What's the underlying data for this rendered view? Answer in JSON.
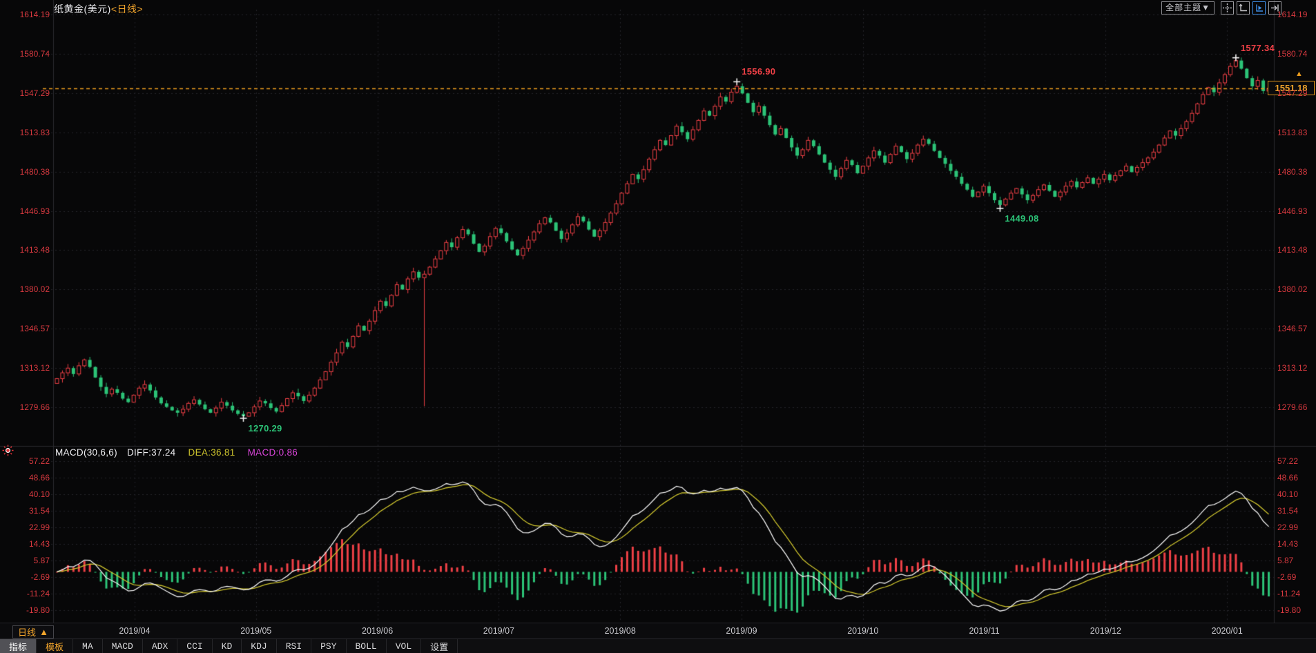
{
  "window": {
    "title_instrument": "纸黄金(美元)",
    "title_period": "<日线>"
  },
  "topbar": {
    "theme_button": "全部主题",
    "theme_caret": "▼",
    "icons": [
      "move-tool-icon",
      "axis-scale-icon",
      "axis-play-icon",
      "snap-to-edge-icon"
    ],
    "active_icon": "axis-play-icon"
  },
  "macd_header": {
    "name": "MACD(30,6,6)",
    "diff": "DIFF:37.24",
    "dea": "DEA:36.81",
    "macd": "MACD:0.86"
  },
  "price_tag": {
    "value": "1551.18"
  },
  "bottom": {
    "period_label": "日线",
    "period_caret": "▲",
    "tabs": [
      {
        "label": "指标",
        "state": "selected"
      },
      {
        "label": "模板",
        "state": "accent"
      },
      {
        "label": "MA"
      },
      {
        "label": "MACD"
      },
      {
        "label": "ADX"
      },
      {
        "label": "CCI"
      },
      {
        "label": "KD"
      },
      {
        "label": "KDJ"
      },
      {
        "label": "RSI"
      },
      {
        "label": "PSY"
      },
      {
        "label": "BOLL"
      },
      {
        "label": "VOL"
      },
      {
        "label": "设置"
      }
    ]
  },
  "colors": {
    "up": "#ef4046",
    "down": "#2cc377",
    "axis_text": "#d7393f",
    "accent_orange": "#e89a1d",
    "diff_line": "#f2f2f2",
    "dea_line": "#cdc32d",
    "macd_value": "#da45da",
    "grid": "#232328",
    "month_text": "#cbcbd0"
  },
  "chart_data": {
    "type": "candlestick+macd",
    "title": "纸黄金(美元)",
    "period": "日线",
    "y_axis_labels": [
      "1614.19",
      "1580.74",
      "1547.29",
      "1513.83",
      "1480.38",
      "1446.93",
      "1413.48",
      "1380.02",
      "1346.57",
      "1313.12",
      "1279.66"
    ],
    "y_max": 1614.19,
    "y_min": 1279.66,
    "macd_axis_labels": [
      "57.22",
      "48.66",
      "40.10",
      "31.54",
      "22.99",
      "14.43",
      "5.87",
      "-2.69",
      "-11.24",
      "-19.80"
    ],
    "macd_max": 57.22,
    "macd_min": -19.8,
    "x_labels": [
      "2019/04",
      "2019/05",
      "2019/06",
      "2019/07",
      "2019/08",
      "2019/09",
      "2019/10",
      "2019/11",
      "2019/12",
      "2020/01"
    ],
    "current_price": 1551.18,
    "macd_values": {
      "diff": 37.24,
      "dea": 36.81,
      "macd": 0.86
    },
    "closes": [
      1304,
      1309,
      1313,
      1308,
      1315,
      1320,
      1314,
      1305,
      1297,
      1291,
      1295,
      1292,
      1287,
      1284,
      1290,
      1296,
      1299,
      1294,
      1288,
      1283,
      1280,
      1277,
      1275,
      1278,
      1283,
      1286,
      1282,
      1278,
      1275,
      1279,
      1284,
      1281,
      1277,
      1274,
      1272,
      1275,
      1280,
      1285,
      1283,
      1279,
      1276,
      1281,
      1287,
      1292,
      1289,
      1285,
      1290,
      1296,
      1303,
      1310,
      1318,
      1326,
      1335,
      1331,
      1340,
      1349,
      1345,
      1353,
      1362,
      1370,
      1366,
      1375,
      1384,
      1380,
      1389,
      1395,
      1390,
      1393,
      1399,
      1406,
      1413,
      1420,
      1416,
      1424,
      1431,
      1427,
      1419,
      1412,
      1417,
      1425,
      1432,
      1428,
      1421,
      1414,
      1409,
      1415,
      1422,
      1429,
      1436,
      1441,
      1437,
      1430,
      1423,
      1428,
      1435,
      1442,
      1438,
      1431,
      1425,
      1430,
      1437,
      1445,
      1453,
      1462,
      1470,
      1478,
      1474,
      1482,
      1491,
      1499,
      1507,
      1503,
      1511,
      1519,
      1514,
      1508,
      1516,
      1524,
      1532,
      1528,
      1536,
      1544,
      1540,
      1548,
      1553,
      1547,
      1539,
      1531,
      1536,
      1528,
      1520,
      1512,
      1517,
      1509,
      1501,
      1494,
      1499,
      1507,
      1502,
      1495,
      1488,
      1482,
      1476,
      1483,
      1490,
      1486,
      1479,
      1485,
      1492,
      1498,
      1494,
      1488,
      1495,
      1502,
      1497,
      1491,
      1496,
      1503,
      1508,
      1504,
      1498,
      1492,
      1487,
      1481,
      1476,
      1470,
      1465,
      1459,
      1463,
      1468,
      1462,
      1456,
      1452,
      1457,
      1462,
      1466,
      1461,
      1456,
      1460,
      1465,
      1469,
      1464,
      1459,
      1463,
      1468,
      1472,
      1467,
      1471,
      1475,
      1470,
      1474,
      1478,
      1473,
      1477,
      1481,
      1485,
      1480,
      1484,
      1488,
      1492,
      1497,
      1503,
      1509,
      1515,
      1511,
      1517,
      1523,
      1530,
      1538,
      1546,
      1552,
      1548,
      1556,
      1563,
      1570,
      1575,
      1568,
      1560,
      1553,
      1558,
      1549,
      1551.18
    ],
    "wick_overrides": {
      "67": {
        "low": 1280.5
      }
    },
    "annotations": [
      {
        "idx": 34,
        "price": 1270.29,
        "text": "1270.29",
        "type": "low",
        "color": "down"
      },
      {
        "idx": 124,
        "price": 1556.9,
        "text": "1556.90",
        "type": "high",
        "color": "up"
      },
      {
        "idx": 172,
        "price": 1449.08,
        "text": "1449.08",
        "type": "low",
        "color": "down"
      },
      {
        "idx": 215,
        "price": 1577.34,
        "text": "1577.34",
        "type": "high",
        "color": "up"
      }
    ]
  }
}
